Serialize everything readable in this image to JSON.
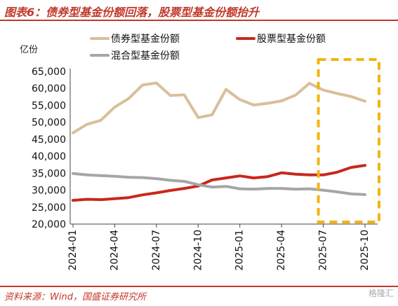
{
  "header": {
    "title": "图表6：债券型基金份额回落，股票型基金份额抬升"
  },
  "footer": {
    "source": "资料来源：Wind，国盛证券研究所",
    "watermark": "格隆汇"
  },
  "colors": {
    "accent": "#c0392b",
    "bond": "#d9bf9a",
    "stock": "#c8281e",
    "mixed": "#a6a6a6",
    "highlight": "#f2b50f"
  },
  "icons": {
    "watermark": "watermark-logo-icon"
  },
  "chart_data": {
    "type": "line",
    "ylabel": "亿份",
    "ylim": [
      20000,
      65000
    ],
    "yticks": [
      20000,
      25000,
      30000,
      35000,
      40000,
      45000,
      50000,
      55000,
      60000,
      65000
    ],
    "ytick_labels": [
      "20,000",
      "25,000",
      "30,000",
      "35,000",
      "40,000",
      "45,000",
      "50,000",
      "55,000",
      "60,000",
      "65,000"
    ],
    "x": [
      "2024-01",
      "2024-02",
      "2024-03",
      "2024-04",
      "2024-05",
      "2024-06",
      "2024-07",
      "2024-08",
      "2024-09",
      "2024-10",
      "2024-11",
      "2024-12",
      "2025-01",
      "2025-02",
      "2025-03",
      "2025-04",
      "2025-05",
      "2025-06",
      "2025-07",
      "2025-08",
      "2025-09",
      "2025-10"
    ],
    "xtick_labels": [
      "2024-01",
      "2024-04",
      "2024-07",
      "2024-10",
      "2025-01",
      "2025-04",
      "2025-07",
      "2025-10"
    ],
    "xtick_index": [
      0,
      3,
      6,
      9,
      12,
      15,
      18,
      21
    ],
    "series": [
      {
        "name": "债券型基金份额",
        "color": "#d9bf9a",
        "width": 4,
        "values": [
          46900,
          49400,
          50600,
          54500,
          57000,
          61000,
          61600,
          57900,
          58100,
          51400,
          52200,
          59700,
          56700,
          55100,
          55600,
          56300,
          58000,
          61500,
          59500,
          58500,
          57600,
          56200
        ]
      },
      {
        "name": "股票型基金份额",
        "color": "#c8281e",
        "width": 4,
        "values": [
          27000,
          27300,
          27200,
          27500,
          27800,
          28600,
          29200,
          29900,
          30500,
          31200,
          33000,
          33600,
          34200,
          33600,
          34000,
          35100,
          34700,
          34500,
          34500,
          35300,
          36700,
          37300
        ]
      },
      {
        "name": "混合型基金份额",
        "color": "#a6a6a6",
        "width": 4,
        "values": [
          34900,
          34500,
          34300,
          34100,
          33800,
          33700,
          33400,
          32900,
          32600,
          31600,
          30900,
          31100,
          30400,
          30300,
          30500,
          30500,
          30300,
          30400,
          30000,
          29500,
          28900,
          28700
        ]
      }
    ],
    "highlight_range": [
      "2025-07",
      "2025-10"
    ],
    "legend": "top"
  }
}
